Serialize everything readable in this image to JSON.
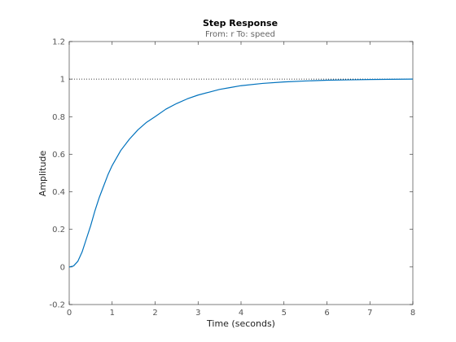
{
  "chart_data": {
    "type": "line",
    "title": "Step Response",
    "subtitle": "From: r  To: speed",
    "xlabel": "Time (seconds)",
    "ylabel": "Amplitude",
    "xlim": [
      0,
      8
    ],
    "ylim": [
      -0.2,
      1.2
    ],
    "x_ticks": [
      0,
      1,
      2,
      3,
      4,
      5,
      6,
      7,
      8
    ],
    "y_ticks": [
      -0.2,
      0,
      0.2,
      0.4,
      0.6,
      0.8,
      1,
      1.2
    ],
    "x_tick_labels": [
      "0",
      "1",
      "2",
      "3",
      "4",
      "5",
      "6",
      "7",
      "8"
    ],
    "y_tick_labels": [
      "-0.2",
      "0",
      "0.2",
      "0.4",
      "0.6",
      "0.8",
      "1",
      "1.2"
    ],
    "grid": false,
    "reference_line": {
      "y": 1,
      "style": "dotted",
      "color": "#000000"
    },
    "series": [
      {
        "color": "#0072BD",
        "x": [
          0,
          0.1,
          0.2,
          0.3,
          0.4,
          0.5,
          0.6,
          0.7,
          0.8,
          0.9,
          1.0,
          1.2,
          1.4,
          1.6,
          1.8,
          2.0,
          2.25,
          2.5,
          2.75,
          3.0,
          3.25,
          3.5,
          3.75,
          4.0,
          4.5,
          5.0,
          5.5,
          6.0,
          6.5,
          7.0,
          7.5,
          8.0
        ],
        "y": [
          0,
          0.005,
          0.03,
          0.08,
          0.15,
          0.22,
          0.3,
          0.37,
          0.43,
          0.49,
          0.54,
          0.62,
          0.68,
          0.73,
          0.77,
          0.8,
          0.84,
          0.87,
          0.895,
          0.915,
          0.93,
          0.945,
          0.955,
          0.965,
          0.977,
          0.985,
          0.99,
          0.994,
          0.996,
          0.998,
          0.999,
          1.0
        ]
      }
    ]
  }
}
